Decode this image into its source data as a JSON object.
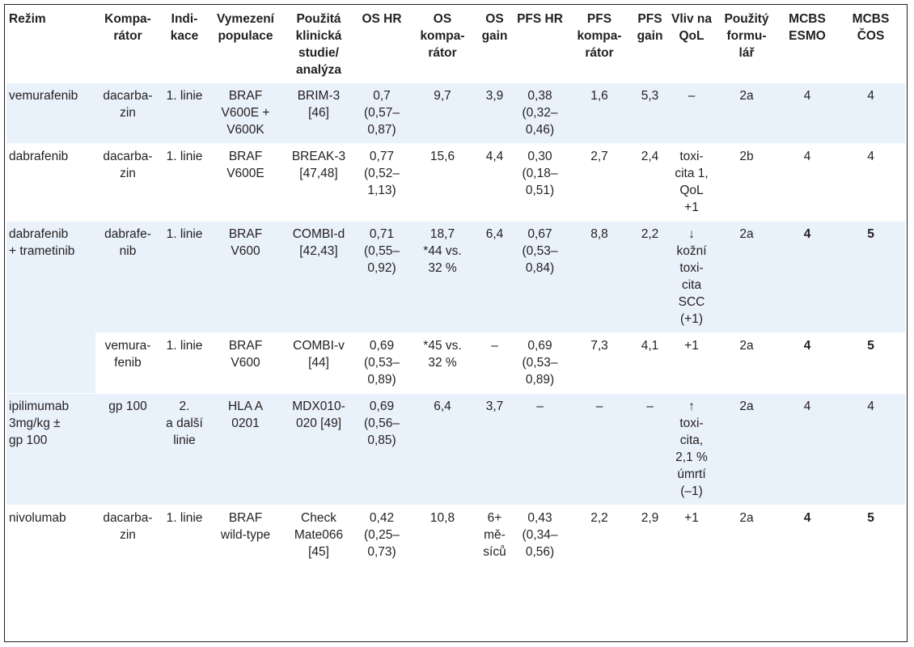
{
  "headers": [
    "Režim",
    "Kompa-\nrátor",
    "Indi-\nkace",
    "Vymezení\npopulace",
    "Použitá\nklinická\nstudie/\nanalýza",
    "OS\nHR",
    "OS\nkompa-\nrátor",
    "OS\ngain",
    "PFS\nHR",
    "PFS\nkompa-\nrátor",
    "PFS\ngain",
    "Vliv\nna\nQoL",
    "Použitý\nformu-\nlář",
    "MCBS\nESMO",
    "MCBS\nČOS"
  ],
  "rows": [
    {
      "regimen": "vemurafenib",
      "comparator": "dacarba-\nzin",
      "indication": "1. linie",
      "population": "BRAF\nV600E +\nV600K",
      "study": "BRIM-3\n[46]",
      "os_hr": "0,7\n(0,57–\n0,87)",
      "os_comparator": "9,7",
      "os_gain": "3,9",
      "pfs_hr": "0,38\n(0,32–\n0,46)",
      "pfs_comparator": "1,6",
      "pfs_gain": "5,3",
      "qol": "–",
      "form": "2a",
      "mcbs_esmo": "4",
      "mcbs_cos": "4"
    },
    {
      "regimen": "dabrafenib",
      "comparator": "dacarba-\nzin",
      "indication": "1. linie",
      "population": "BRAF\nV600E",
      "study": "BREAK-3\n[47,48]",
      "os_hr": "0,77\n(0,52–\n1,13)",
      "os_comparator": "15,6",
      "os_gain": "4,4",
      "pfs_hr": "0,30\n(0,18–\n0,51)",
      "pfs_comparator": "2,7",
      "pfs_gain": "2,4",
      "qol": "toxi-\ncita 1,\nQoL\n+1",
      "form": "2b",
      "mcbs_esmo": "4",
      "mcbs_cos": "4"
    },
    {
      "regimen": "dabrafenib\n+ trametinib",
      "comparator": "dabrafe-\nnib",
      "indication": "1. linie",
      "population": "BRAF\nV600",
      "study": "COMBI-d\n[42,43]",
      "os_hr": "0,71\n(0,55–\n0,92)",
      "os_comparator": "18,7\n*44 vs.\n32 %",
      "os_gain": "6,4",
      "pfs_hr": "0,67\n(0,53–\n0,84)",
      "pfs_comparator": "8,8",
      "pfs_gain": "2,2",
      "qol": "↓\nkožní\ntoxi-\ncita\nSCC\n(+1)",
      "form": "2a",
      "mcbs_esmo": "4",
      "mcbs_cos": "5"
    },
    {
      "regimen": "",
      "comparator": "vemura-\nfenib",
      "indication": "1. linie",
      "population": "BRAF\nV600",
      "study": "COMBI-v\n[44]",
      "os_hr": "0,69\n(0,53–\n0,89)",
      "os_comparator": "*45 vs.\n32 %",
      "os_gain": "–",
      "pfs_hr": "0,69\n(0,53–\n0,89)",
      "pfs_comparator": "7,3",
      "pfs_gain": "4,1",
      "qol": "+1",
      "form": "2a",
      "mcbs_esmo": "4",
      "mcbs_cos": "5"
    },
    {
      "regimen": "ipilimumab\n3mg/kg ±\ngp 100",
      "comparator": "gp 100",
      "indication": "2.\na další\nlinie",
      "population": "HLA A\n0201",
      "study": "MDX010-\n020 [49]",
      "os_hr": "0,69\n(0,56–\n0,85)",
      "os_comparator": "6,4",
      "os_gain": "3,7",
      "pfs_hr": "–",
      "pfs_comparator": "–",
      "pfs_gain": "–",
      "qol": "↑\ntoxi-\ncita,\n2,1 %\númrtí\n(–1)",
      "form": "2a",
      "mcbs_esmo": "4",
      "mcbs_cos": "4"
    },
    {
      "regimen": "nivolumab",
      "comparator": "dacarba-\nzin",
      "indication": "1. linie",
      "population": "BRAF\nwild-type",
      "study": "Check\nMate066\n[45]",
      "os_hr": "0,42\n(0,25–\n0,73)",
      "os_comparator": "10,8",
      "os_gain": "6+\nmě-\nsíců",
      "pfs_hr": "0,43\n(0,34–\n0,56)",
      "pfs_comparator": "2,2",
      "pfs_gain": "2,9",
      "qol": "+1",
      "form": "2a",
      "mcbs_esmo": "4",
      "mcbs_cos": "5"
    }
  ]
}
